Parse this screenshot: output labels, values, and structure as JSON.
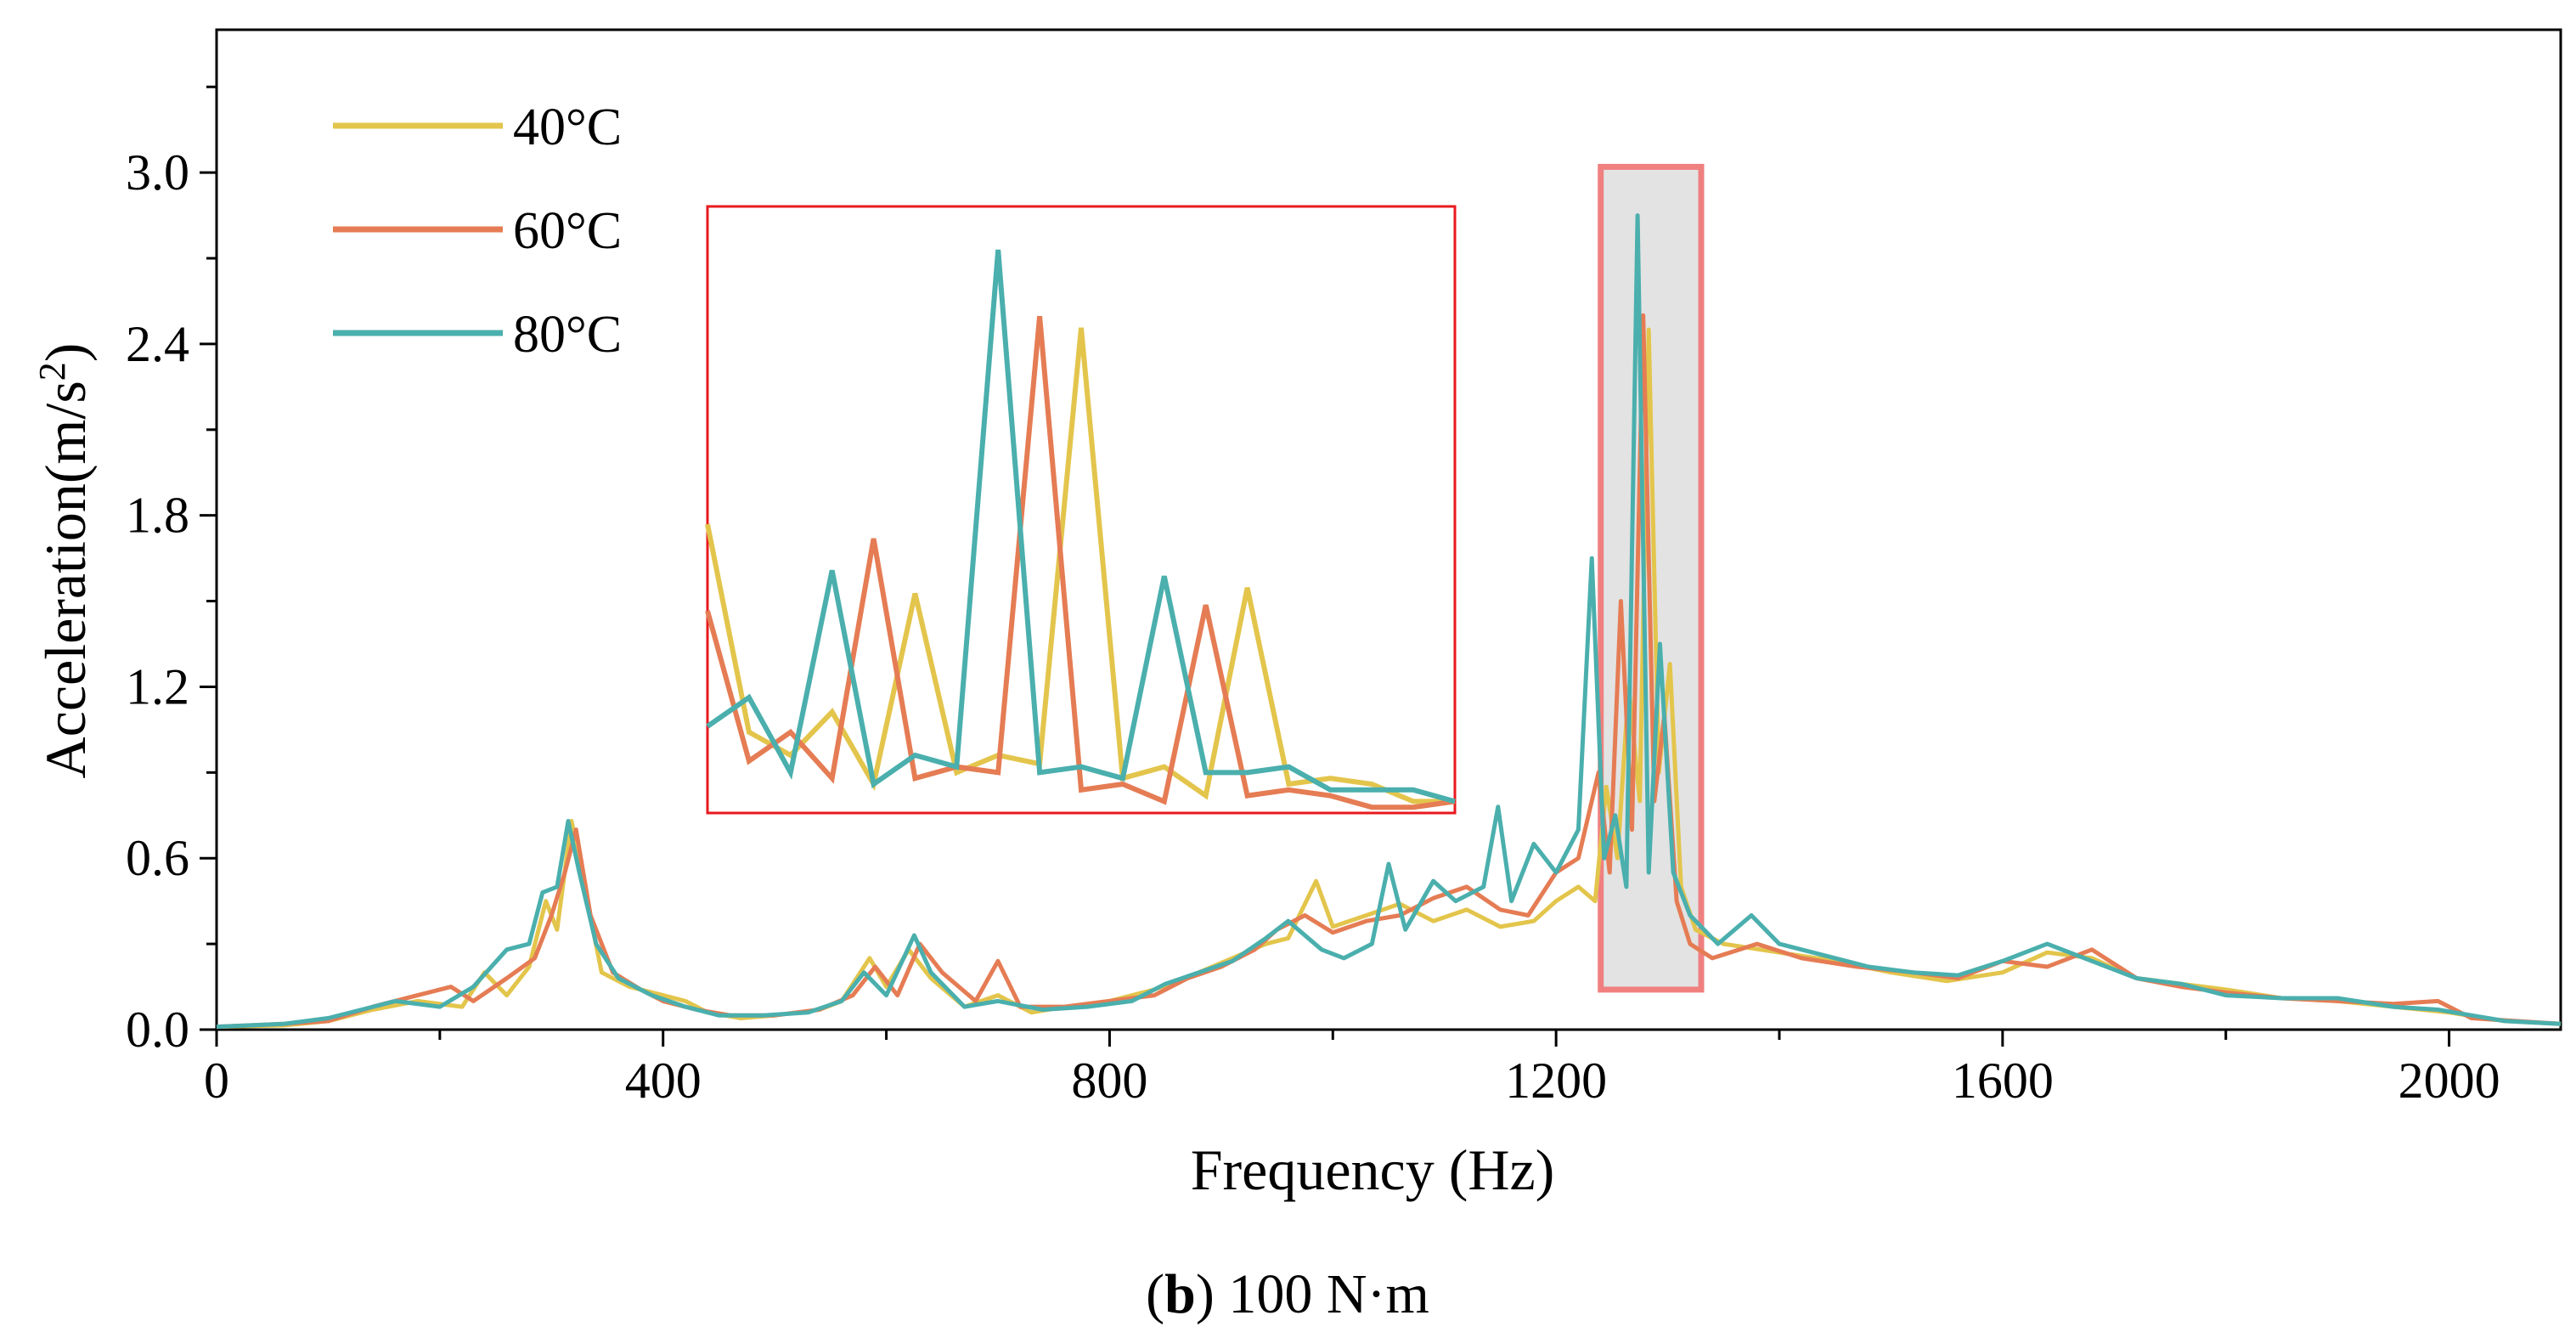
{
  "chart_data": {
    "type": "line",
    "xlabel": "Frequency (Hz)",
    "ylabel": "Acceleration(m/s",
    "ylabel_sup": "2",
    "ylabel_close": ")",
    "xlim": [
      0,
      2100
    ],
    "ylim": [
      0,
      3.5
    ],
    "xticks": [
      0,
      400,
      800,
      1200,
      1600,
      2000
    ],
    "xtick_labels": [
      "0",
      "400",
      "800",
      "1200",
      "1600",
      "2000"
    ],
    "yticks": [
      0.0,
      0.6,
      1.2,
      1.8,
      2.4,
      3.0
    ],
    "ytick_labels": [
      "0.0",
      "0.6",
      "1.2",
      "1.8",
      "2.4",
      "3.0"
    ],
    "legend_position": "top-left",
    "caption": {
      "bold": "b",
      "open": "(",
      "close": ")",
      "text": " 100 N·m"
    },
    "highlight_region": {
      "x": [
        1240,
        1330
      ],
      "y": [
        0.14,
        3.02
      ]
    },
    "inset": {
      "x": [
        1240,
        1320
      ]
    },
    "series": [
      {
        "name": "40°C",
        "color": "#E3C54C",
        "points": [
          [
            0,
            0.01
          ],
          [
            60,
            0.015
          ],
          [
            100,
            0.03
          ],
          [
            140,
            0.07
          ],
          [
            180,
            0.1
          ],
          [
            220,
            0.08
          ],
          [
            240,
            0.2
          ],
          [
            260,
            0.12
          ],
          [
            280,
            0.22
          ],
          [
            295,
            0.45
          ],
          [
            305,
            0.35
          ],
          [
            318,
            0.73
          ],
          [
            325,
            0.6
          ],
          [
            332,
            0.45
          ],
          [
            345,
            0.2
          ],
          [
            370,
            0.15
          ],
          [
            400,
            0.12
          ],
          [
            420,
            0.1
          ],
          [
            440,
            0.06
          ],
          [
            470,
            0.04
          ],
          [
            500,
            0.05
          ],
          [
            540,
            0.07
          ],
          [
            560,
            0.1
          ],
          [
            585,
            0.25
          ],
          [
            600,
            0.15
          ],
          [
            620,
            0.28
          ],
          [
            640,
            0.18
          ],
          [
            670,
            0.08
          ],
          [
            700,
            0.12
          ],
          [
            730,
            0.06
          ],
          [
            760,
            0.08
          ],
          [
            800,
            0.1
          ],
          [
            840,
            0.14
          ],
          [
            880,
            0.2
          ],
          [
            910,
            0.25
          ],
          [
            940,
            0.3
          ],
          [
            960,
            0.32
          ],
          [
            985,
            0.52
          ],
          [
            1000,
            0.36
          ],
          [
            1030,
            0.4
          ],
          [
            1060,
            0.44
          ],
          [
            1090,
            0.38
          ],
          [
            1120,
            0.42
          ],
          [
            1150,
            0.36
          ],
          [
            1180,
            0.38
          ],
          [
            1200,
            0.45
          ],
          [
            1220,
            0.5
          ],
          [
            1235,
            0.45
          ],
          [
            1245,
            0.85
          ],
          [
            1255,
            0.6
          ],
          [
            1265,
            1.2
          ],
          [
            1275,
            0.8
          ],
          [
            1283,
            2.45
          ],
          [
            1292,
            0.9
          ],
          [
            1302,
            1.28
          ],
          [
            1312,
            0.5
          ],
          [
            1325,
            0.35
          ],
          [
            1350,
            0.3
          ],
          [
            1400,
            0.27
          ],
          [
            1450,
            0.24
          ],
          [
            1500,
            0.2
          ],
          [
            1550,
            0.17
          ],
          [
            1600,
            0.2
          ],
          [
            1640,
            0.27
          ],
          [
            1680,
            0.25
          ],
          [
            1720,
            0.18
          ],
          [
            1760,
            0.16
          ],
          [
            1800,
            0.14
          ],
          [
            1850,
            0.11
          ],
          [
            1900,
            0.1
          ],
          [
            1950,
            0.08
          ],
          [
            2000,
            0.06
          ],
          [
            2050,
            0.03
          ],
          [
            2100,
            0.02
          ]
        ]
      },
      {
        "name": "60°C",
        "color": "#E57C54",
        "points": [
          [
            0,
            0.01
          ],
          [
            60,
            0.02
          ],
          [
            100,
            0.03
          ],
          [
            140,
            0.08
          ],
          [
            180,
            0.12
          ],
          [
            210,
            0.15
          ],
          [
            230,
            0.1
          ],
          [
            260,
            0.18
          ],
          [
            285,
            0.25
          ],
          [
            300,
            0.4
          ],
          [
            312,
            0.55
          ],
          [
            322,
            0.7
          ],
          [
            335,
            0.4
          ],
          [
            355,
            0.2
          ],
          [
            380,
            0.14
          ],
          [
            400,
            0.1
          ],
          [
            430,
            0.07
          ],
          [
            460,
            0.05
          ],
          [
            500,
            0.05
          ],
          [
            540,
            0.07
          ],
          [
            570,
            0.12
          ],
          [
            590,
            0.22
          ],
          [
            610,
            0.12
          ],
          [
            630,
            0.3
          ],
          [
            650,
            0.2
          ],
          [
            680,
            0.1
          ],
          [
            700,
            0.24
          ],
          [
            720,
            0.08
          ],
          [
            760,
            0.08
          ],
          [
            800,
            0.1
          ],
          [
            840,
            0.12
          ],
          [
            870,
            0.18
          ],
          [
            900,
            0.22
          ],
          [
            930,
            0.28
          ],
          [
            950,
            0.35
          ],
          [
            975,
            0.4
          ],
          [
            1000,
            0.34
          ],
          [
            1030,
            0.38
          ],
          [
            1060,
            0.4
          ],
          [
            1090,
            0.46
          ],
          [
            1120,
            0.5
          ],
          [
            1150,
            0.42
          ],
          [
            1175,
            0.4
          ],
          [
            1200,
            0.55
          ],
          [
            1220,
            0.6
          ],
          [
            1238,
            0.9
          ],
          [
            1248,
            0.55
          ],
          [
            1258,
            1.5
          ],
          [
            1268,
            0.7
          ],
          [
            1278,
            2.5
          ],
          [
            1288,
            0.8
          ],
          [
            1297,
            1.1
          ],
          [
            1308,
            0.45
          ],
          [
            1320,
            0.3
          ],
          [
            1340,
            0.25
          ],
          [
            1380,
            0.3
          ],
          [
            1420,
            0.25
          ],
          [
            1470,
            0.22
          ],
          [
            1520,
            0.2
          ],
          [
            1560,
            0.18
          ],
          [
            1600,
            0.24
          ],
          [
            1640,
            0.22
          ],
          [
            1680,
            0.28
          ],
          [
            1720,
            0.18
          ],
          [
            1760,
            0.15
          ],
          [
            1800,
            0.13
          ],
          [
            1850,
            0.11
          ],
          [
            1900,
            0.1
          ],
          [
            1950,
            0.09
          ],
          [
            1990,
            0.1
          ],
          [
            2020,
            0.04
          ],
          [
            2100,
            0.02
          ]
        ]
      },
      {
        "name": "80°C",
        "color": "#4AAFAD",
        "points": [
          [
            0,
            0.01
          ],
          [
            60,
            0.02
          ],
          [
            100,
            0.04
          ],
          [
            130,
            0.07
          ],
          [
            160,
            0.1
          ],
          [
            200,
            0.08
          ],
          [
            230,
            0.15
          ],
          [
            260,
            0.28
          ],
          [
            280,
            0.3
          ],
          [
            292,
            0.48
          ],
          [
            305,
            0.5
          ],
          [
            315,
            0.73
          ],
          [
            325,
            0.55
          ],
          [
            340,
            0.3
          ],
          [
            360,
            0.18
          ],
          [
            390,
            0.12
          ],
          [
            420,
            0.08
          ],
          [
            450,
            0.05
          ],
          [
            490,
            0.05
          ],
          [
            530,
            0.06
          ],
          [
            560,
            0.1
          ],
          [
            580,
            0.2
          ],
          [
            600,
            0.12
          ],
          [
            625,
            0.33
          ],
          [
            640,
            0.2
          ],
          [
            670,
            0.08
          ],
          [
            700,
            0.1
          ],
          [
            740,
            0.07
          ],
          [
            780,
            0.08
          ],
          [
            820,
            0.1
          ],
          [
            850,
            0.16
          ],
          [
            880,
            0.2
          ],
          [
            910,
            0.24
          ],
          [
            940,
            0.32
          ],
          [
            960,
            0.38
          ],
          [
            990,
            0.28
          ],
          [
            1010,
            0.25
          ],
          [
            1035,
            0.3
          ],
          [
            1050,
            0.58
          ],
          [
            1065,
            0.35
          ],
          [
            1090,
            0.52
          ],
          [
            1110,
            0.45
          ],
          [
            1135,
            0.5
          ],
          [
            1148,
            0.78
          ],
          [
            1160,
            0.45
          ],
          [
            1180,
            0.65
          ],
          [
            1200,
            0.55
          ],
          [
            1220,
            0.7
          ],
          [
            1232,
            1.65
          ],
          [
            1243,
            0.6
          ],
          [
            1253,
            0.75
          ],
          [
            1263,
            0.5
          ],
          [
            1273,
            2.85
          ],
          [
            1283,
            0.55
          ],
          [
            1293,
            1.35
          ],
          [
            1305,
            0.55
          ],
          [
            1320,
            0.4
          ],
          [
            1345,
            0.3
          ],
          [
            1375,
            0.4
          ],
          [
            1400,
            0.3
          ],
          [
            1440,
            0.26
          ],
          [
            1480,
            0.22
          ],
          [
            1520,
            0.2
          ],
          [
            1560,
            0.19
          ],
          [
            1600,
            0.24
          ],
          [
            1640,
            0.3
          ],
          [
            1680,
            0.24
          ],
          [
            1720,
            0.18
          ],
          [
            1760,
            0.16
          ],
          [
            1800,
            0.12
          ],
          [
            1850,
            0.11
          ],
          [
            1900,
            0.11
          ],
          [
            1950,
            0.08
          ],
          [
            1990,
            0.07
          ],
          [
            2050,
            0.03
          ],
          [
            2100,
            0.02
          ]
        ]
      }
    ],
    "inset_series": [
      {
        "name": "40°C",
        "points": [
          [
            1240,
            1.8
          ],
          [
            1246,
            1.08
          ],
          [
            1252,
            1.0
          ],
          [
            1258,
            1.15
          ],
          [
            1264,
            0.9
          ],
          [
            1270,
            1.56
          ],
          [
            1276,
            0.94
          ],
          [
            1282,
            1.0
          ],
          [
            1288,
            0.97
          ],
          [
            1294,
            2.48
          ],
          [
            1300,
            0.92
          ],
          [
            1306,
            0.96
          ],
          [
            1312,
            0.86
          ],
          [
            1318,
            1.58
          ],
          [
            1324,
            0.9
          ],
          [
            1330,
            0.92
          ],
          [
            1336,
            0.9
          ],
          [
            1342,
            0.84
          ],
          [
            1348,
            0.84
          ]
        ]
      },
      {
        "name": "60°C",
        "points": [
          [
            1240,
            1.5
          ],
          [
            1246,
            0.98
          ],
          [
            1252,
            1.08
          ],
          [
            1258,
            0.92
          ],
          [
            1264,
            1.75
          ],
          [
            1270,
            0.92
          ],
          [
            1276,
            0.96
          ],
          [
            1282,
            0.94
          ],
          [
            1288,
            2.52
          ],
          [
            1294,
            0.88
          ],
          [
            1300,
            0.9
          ],
          [
            1306,
            0.84
          ],
          [
            1312,
            1.52
          ],
          [
            1318,
            0.86
          ],
          [
            1324,
            0.88
          ],
          [
            1330,
            0.86
          ],
          [
            1336,
            0.82
          ],
          [
            1342,
            0.82
          ],
          [
            1348,
            0.84
          ]
        ]
      },
      {
        "name": "80°C",
        "points": [
          [
            1240,
            1.1
          ],
          [
            1246,
            1.2
          ],
          [
            1252,
            0.94
          ],
          [
            1258,
            1.64
          ],
          [
            1264,
            0.9
          ],
          [
            1270,
            1.0
          ],
          [
            1276,
            0.96
          ],
          [
            1282,
            2.75
          ],
          [
            1288,
            0.94
          ],
          [
            1294,
            0.96
          ],
          [
            1300,
            0.92
          ],
          [
            1306,
            1.62
          ],
          [
            1312,
            0.94
          ],
          [
            1318,
            0.94
          ],
          [
            1324,
            0.96
          ],
          [
            1330,
            0.88
          ],
          [
            1336,
            0.88
          ],
          [
            1342,
            0.88
          ],
          [
            1348,
            0.84
          ]
        ]
      }
    ]
  }
}
